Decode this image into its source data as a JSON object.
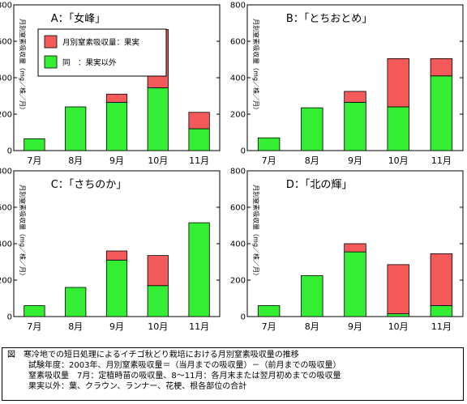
{
  "chart_data": [
    {
      "type": "bar",
      "stacked": true,
      "title": "A：「女峰」",
      "categories": [
        "7月",
        "8月",
        "9月",
        "10月",
        "11月"
      ],
      "series": [
        {
          "name": "同　：果実以外",
          "color": "#33ee33",
          "values": [
            65,
            240,
            265,
            345,
            120
          ]
        },
        {
          "name": "月別窒素吸収量：果実",
          "color": "#f55a5a",
          "values": [
            0,
            0,
            45,
            320,
            90
          ]
        }
      ],
      "ylabel": "月別窒素吸収量（mg／株／月）",
      "ylim": [
        0,
        800
      ],
      "yticks": [
        0,
        200,
        400,
        600,
        800
      ],
      "legend": "top-left"
    },
    {
      "type": "bar",
      "stacked": true,
      "title": "B：「とちおとめ」",
      "categories": [
        "7月",
        "8月",
        "9月",
        "10月",
        "11月"
      ],
      "series": [
        {
          "name": "同　：果実以外",
          "color": "#33ee33",
          "values": [
            70,
            235,
            265,
            240,
            410
          ]
        },
        {
          "name": "月別窒素吸収量：果実",
          "color": "#f55a5a",
          "values": [
            0,
            0,
            60,
            265,
            95
          ]
        }
      ],
      "ylabel": "月別窒素吸収量（mg／株／月）",
      "ylim": [
        0,
        800
      ],
      "yticks": [
        0,
        200,
        400,
        600,
        800
      ]
    },
    {
      "type": "bar",
      "stacked": true,
      "title": "C：「さちのか」",
      "categories": [
        "7月",
        "8月",
        "9月",
        "10月",
        "11月"
      ],
      "series": [
        {
          "name": "同　：果実以外",
          "color": "#33ee33",
          "values": [
            60,
            160,
            310,
            170,
            515
          ]
        },
        {
          "name": "月別窒素吸収量：果実",
          "color": "#f55a5a",
          "values": [
            0,
            0,
            50,
            165,
            0
          ]
        }
      ],
      "ylabel": "月別窒素吸収量（mg／株／月）",
      "ylim": [
        0,
        800
      ],
      "yticks": [
        0,
        200,
        400,
        600,
        800
      ]
    },
    {
      "type": "bar",
      "stacked": true,
      "title": "D：「北の輝」",
      "categories": [
        "7月",
        "8月",
        "9月",
        "10月",
        "11月"
      ],
      "series": [
        {
          "name": "同　：果実以外",
          "color": "#33ee33",
          "values": [
            60,
            225,
            355,
            15,
            60
          ]
        },
        {
          "name": "月別窒素吸収量：果実",
          "color": "#f55a5a",
          "values": [
            0,
            0,
            45,
            270,
            285
          ]
        }
      ],
      "ylabel": "月別窒素吸収量（mg／株／月）",
      "ylim": [
        0,
        800
      ],
      "yticks": [
        0,
        200,
        400,
        600,
        800
      ]
    }
  ],
  "caption": {
    "line1": "図　寒冷地での短日処理によるイチゴ秋どり栽培における月別窒素吸収量の推移",
    "line2": "試験年度：2003年、月別窒素吸収量＝（当月までの吸収量）－（前月までの吸収量）",
    "line3": "窒素吸収量　7月：定植時苗の吸収量、8～11月：各月末または翌月初めまでの吸収量",
    "line4": "果実以外：葉、クラウン、ランナー、花梗、根各部位の合計"
  }
}
